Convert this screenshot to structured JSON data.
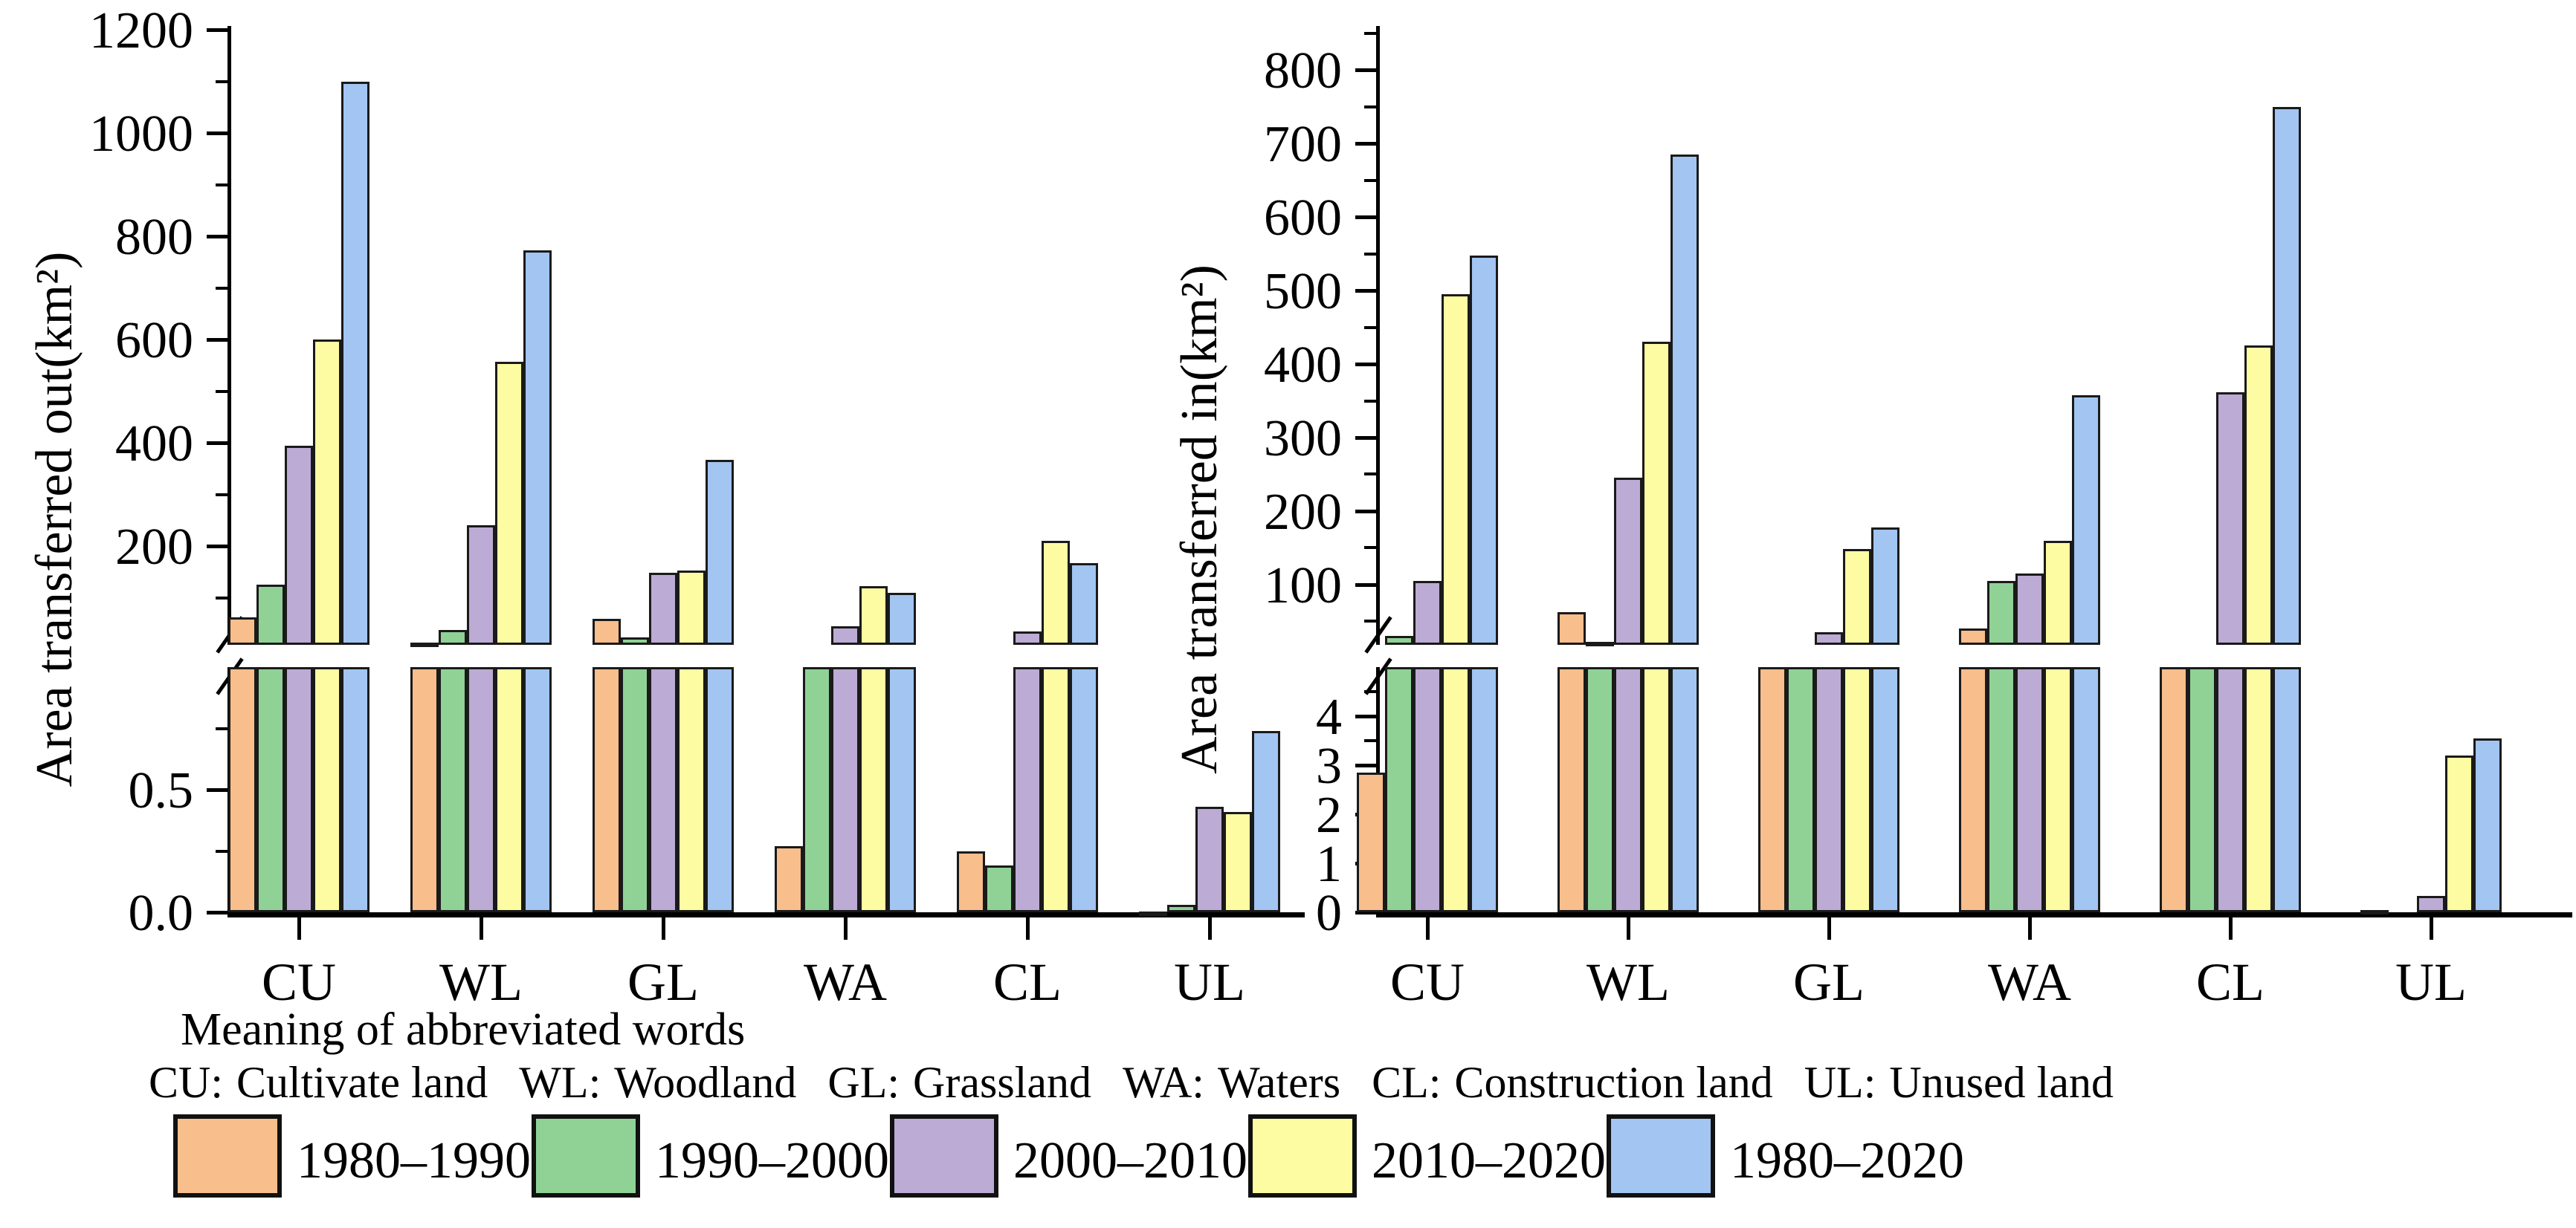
{
  "figure_title": "",
  "chart_data": [
    {
      "type": "bar",
      "id": "area-transferred-out",
      "ylabel": "Area transferred out(km²)",
      "xlabel": "",
      "categories": [
        "CU",
        "WL",
        "GL",
        "WA",
        "CL",
        "UL"
      ],
      "series": [
        {
          "name": "1980–1990",
          "color": "#F8BE8C",
          "values": [
            62,
            13,
            60,
            0.27,
            0.25,
            0.004
          ]
        },
        {
          "name": "1990–2000",
          "color": "#90D296",
          "values": [
            125,
            38,
            24,
            3,
            0.19,
            0.03
          ]
        },
        {
          "name": "2000–2010",
          "color": "#BCABD4",
          "values": [
            395,
            240,
            148,
            45,
            35,
            0.43
          ]
        },
        {
          "name": "2010–2020",
          "color": "#FDFCA2",
          "values": [
            600,
            557,
            153,
            123,
            210,
            0.41
          ]
        },
        {
          "name": "1980–2020",
          "color": "#A2C5F1",
          "values": [
            1100,
            773,
            367,
            110,
            167,
            0.74
          ]
        }
      ],
      "axis_break": true,
      "upper_axis": {
        "range": [
          9,
          1200
        ],
        "major_ticks": [
          200,
          400,
          600,
          800,
          1000,
          1200
        ],
        "major_labels": [
          "200",
          "400",
          "600",
          "800",
          "1000",
          "1200"
        ],
        "minor_ticks": [
          100,
          300,
          500,
          700,
          900,
          1100
        ]
      },
      "lower_axis": {
        "range": [
          0,
          1.0
        ],
        "major_ticks": [
          0,
          0.5
        ],
        "major_labels": [
          "0.0",
          "0.5"
        ],
        "minor_ticks": [
          0.25,
          0.75
        ]
      },
      "grid": false
    },
    {
      "type": "bar",
      "id": "area-transferred-in",
      "ylabel": "Area transferred in(km²)",
      "xlabel": "",
      "categories": [
        "CU",
        "WL",
        "GL",
        "WA",
        "CL",
        "UL"
      ],
      "series": [
        {
          "name": "1980–1990",
          "color": "#F8BE8C",
          "values": [
            2.85,
            62,
            10,
            40,
            8,
            0.05
          ]
        },
        {
          "name": "1990–2000",
          "color": "#90D296",
          "values": [
            30,
            22,
            12,
            105,
            12,
            0.01
          ]
        },
        {
          "name": "2000–2010",
          "color": "#BCABD4",
          "values": [
            105,
            245,
            35,
            115,
            362,
            0.33
          ]
        },
        {
          "name": "2010–2020",
          "color": "#FDFCA2",
          "values": [
            495,
            430,
            148,
            160,
            425,
            3.2
          ]
        },
        {
          "name": "1980–2020",
          "color": "#A2C5F1",
          "values": [
            548,
            685,
            178,
            358,
            750,
            3.55
          ]
        }
      ],
      "axis_break": true,
      "upper_axis": {
        "range": [
          18,
          855
        ],
        "major_ticks": [
          100,
          200,
          300,
          400,
          500,
          600,
          700,
          800
        ],
        "major_labels": [
          "100",
          "200",
          "300",
          "400",
          "500",
          "600",
          "700",
          "800"
        ],
        "minor_ticks": [
          50,
          150,
          250,
          350,
          450,
          550,
          650,
          750,
          850
        ]
      },
      "lower_axis": {
        "range": [
          0,
          5.0
        ],
        "major_ticks": [
          0,
          1,
          2,
          3,
          4
        ],
        "major_labels": [
          "0",
          "1",
          "2",
          "3",
          "4"
        ],
        "minor_ticks": [
          0.5,
          1.5,
          2.5,
          3.5,
          4.5
        ]
      },
      "grid": false
    }
  ],
  "legend": {
    "position": "bottom",
    "items": [
      "1980–1990",
      "1990–2000",
      "2000–2010",
      "2010–2020",
      "1980–2020"
    ]
  },
  "footer": {
    "heading": "Meaning of abbreviated words",
    "abbreviations": [
      {
        "abbr": "CU:",
        "meaning": "Cultivate land"
      },
      {
        "abbr": "WL:",
        "meaning": "Woodland"
      },
      {
        "abbr": "GL:",
        "meaning": "Grassland"
      },
      {
        "abbr": "WA:",
        "meaning": "Waters"
      },
      {
        "abbr": "CL:",
        "meaning": "Construction land"
      },
      {
        "abbr": "UL:",
        "meaning": "Unused land"
      }
    ]
  }
}
